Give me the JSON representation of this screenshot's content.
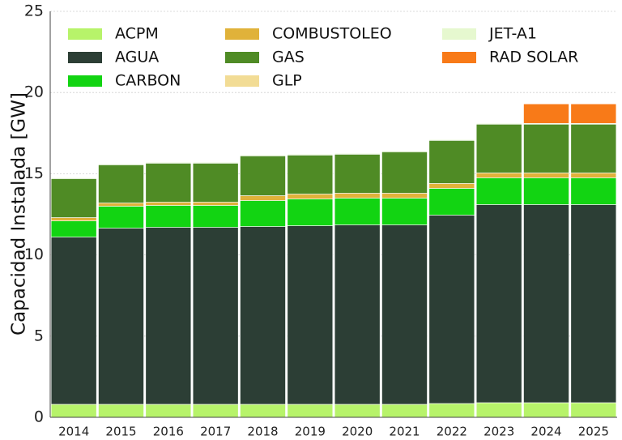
{
  "chart_data": {
    "type": "bar",
    "stacked": true,
    "title": "",
    "xlabel": "",
    "ylabel": "Capacidad Instalada [GW]",
    "ylim": [
      0,
      25
    ],
    "yticks": [
      "0",
      "5",
      "10",
      "15",
      "20",
      "25"
    ],
    "grid": true,
    "legend_position": "top-left",
    "categories": [
      "2014",
      "2015",
      "2016",
      "2017",
      "2018",
      "2019",
      "2020",
      "2021",
      "2022",
      "2023",
      "2024",
      "2025"
    ],
    "series": [
      {
        "name": "ACPM",
        "color": "#b7f36a",
        "values": [
          0.8,
          0.8,
          0.8,
          0.8,
          0.8,
          0.8,
          0.8,
          0.8,
          0.85,
          0.9,
          0.9,
          0.9
        ]
      },
      {
        "name": "AGUA",
        "color": "#2c3e35",
        "values": [
          10.3,
          10.85,
          10.9,
          10.9,
          10.95,
          11.0,
          11.05,
          11.05,
          11.6,
          12.2,
          12.2,
          12.2
        ]
      },
      {
        "name": "CARBON",
        "color": "#12d412",
        "values": [
          1.0,
          1.35,
          1.35,
          1.35,
          1.6,
          1.65,
          1.65,
          1.65,
          1.65,
          1.65,
          1.65,
          1.65
        ]
      },
      {
        "name": "COMBUSTOLEO",
        "color": "#e0b23a",
        "values": [
          0.2,
          0.2,
          0.2,
          0.2,
          0.3,
          0.3,
          0.3,
          0.3,
          0.3,
          0.3,
          0.3,
          0.3
        ]
      },
      {
        "name": "GAS",
        "color": "#4f8b25",
        "values": [
          2.4,
          2.35,
          2.4,
          2.4,
          2.45,
          2.4,
          2.4,
          2.55,
          2.65,
          3.0,
          3.0,
          3.0
        ]
      },
      {
        "name": "GLP",
        "color": "#f2dc95",
        "values": [
          0,
          0,
          0,
          0,
          0,
          0,
          0,
          0,
          0,
          0,
          0,
          0
        ]
      },
      {
        "name": "JET-A1",
        "color": "#e6f8cf",
        "values": [
          0.05,
          0.05,
          0.05,
          0.05,
          0.05,
          0.05,
          0.05,
          0.05,
          0.05,
          0.05,
          0.05,
          0.05
        ]
      },
      {
        "name": "RAD SOLAR",
        "color": "#f87a18",
        "values": [
          0,
          0,
          0,
          0,
          0,
          0,
          0,
          0,
          0,
          0,
          1.2,
          1.2
        ]
      }
    ]
  }
}
